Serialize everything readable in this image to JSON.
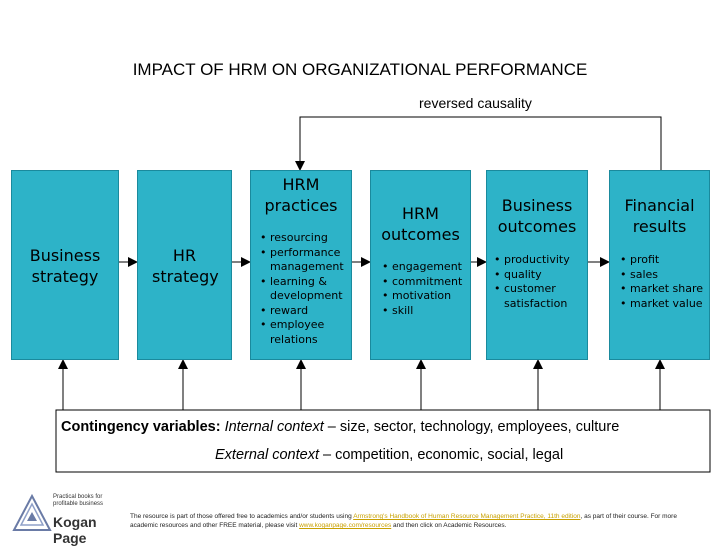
{
  "title": "IMPACT OF HRM ON ORGANIZATIONAL PERFORMANCE",
  "reversed_causality": "reversed causality",
  "boxes": [
    {
      "title": "Business strategy",
      "items": []
    },
    {
      "title": "HR strategy",
      "items": []
    },
    {
      "title": "HRM practices",
      "items": [
        "resourcing",
        "performance management",
        "learning & development",
        "reward",
        "employee relations"
      ]
    },
    {
      "title": "HRM outcomes",
      "items": [
        "engagement",
        "commitment",
        "motivation",
        "skill"
      ]
    },
    {
      "title": "Business outcomes",
      "items": [
        "productivity",
        "quality",
        "customer satisfaction"
      ]
    },
    {
      "title": "Financial results",
      "items": [
        "profit",
        "sales",
        "market share",
        "market value"
      ]
    }
  ],
  "contingency": {
    "label": "Contingency variables:",
    "internal_label": "Internal context",
    "internal_text": " – size, sector, technology, employees, culture",
    "external_label": "External context",
    "external_text": " – competition, economic, social, legal"
  },
  "logo": {
    "tagline": "Practical books for profitable business",
    "name": "Kogan Page"
  },
  "footer": {
    "text_1": "The resource is part of those offered free to academics and/or students using ",
    "book_link": "Armstrong's Handbook of Human Resource Management Practice, 11th edition",
    "text_2": ", as part of their course. For more academic resources and other FREE material, please visit ",
    "site_link": "www.koganpage.com/resources",
    "text_3": " and then click on Academic Resources."
  },
  "colors": {
    "box_fill": "#2db3c8",
    "box_border": "#1a8a9d",
    "link": "#c8a000"
  }
}
